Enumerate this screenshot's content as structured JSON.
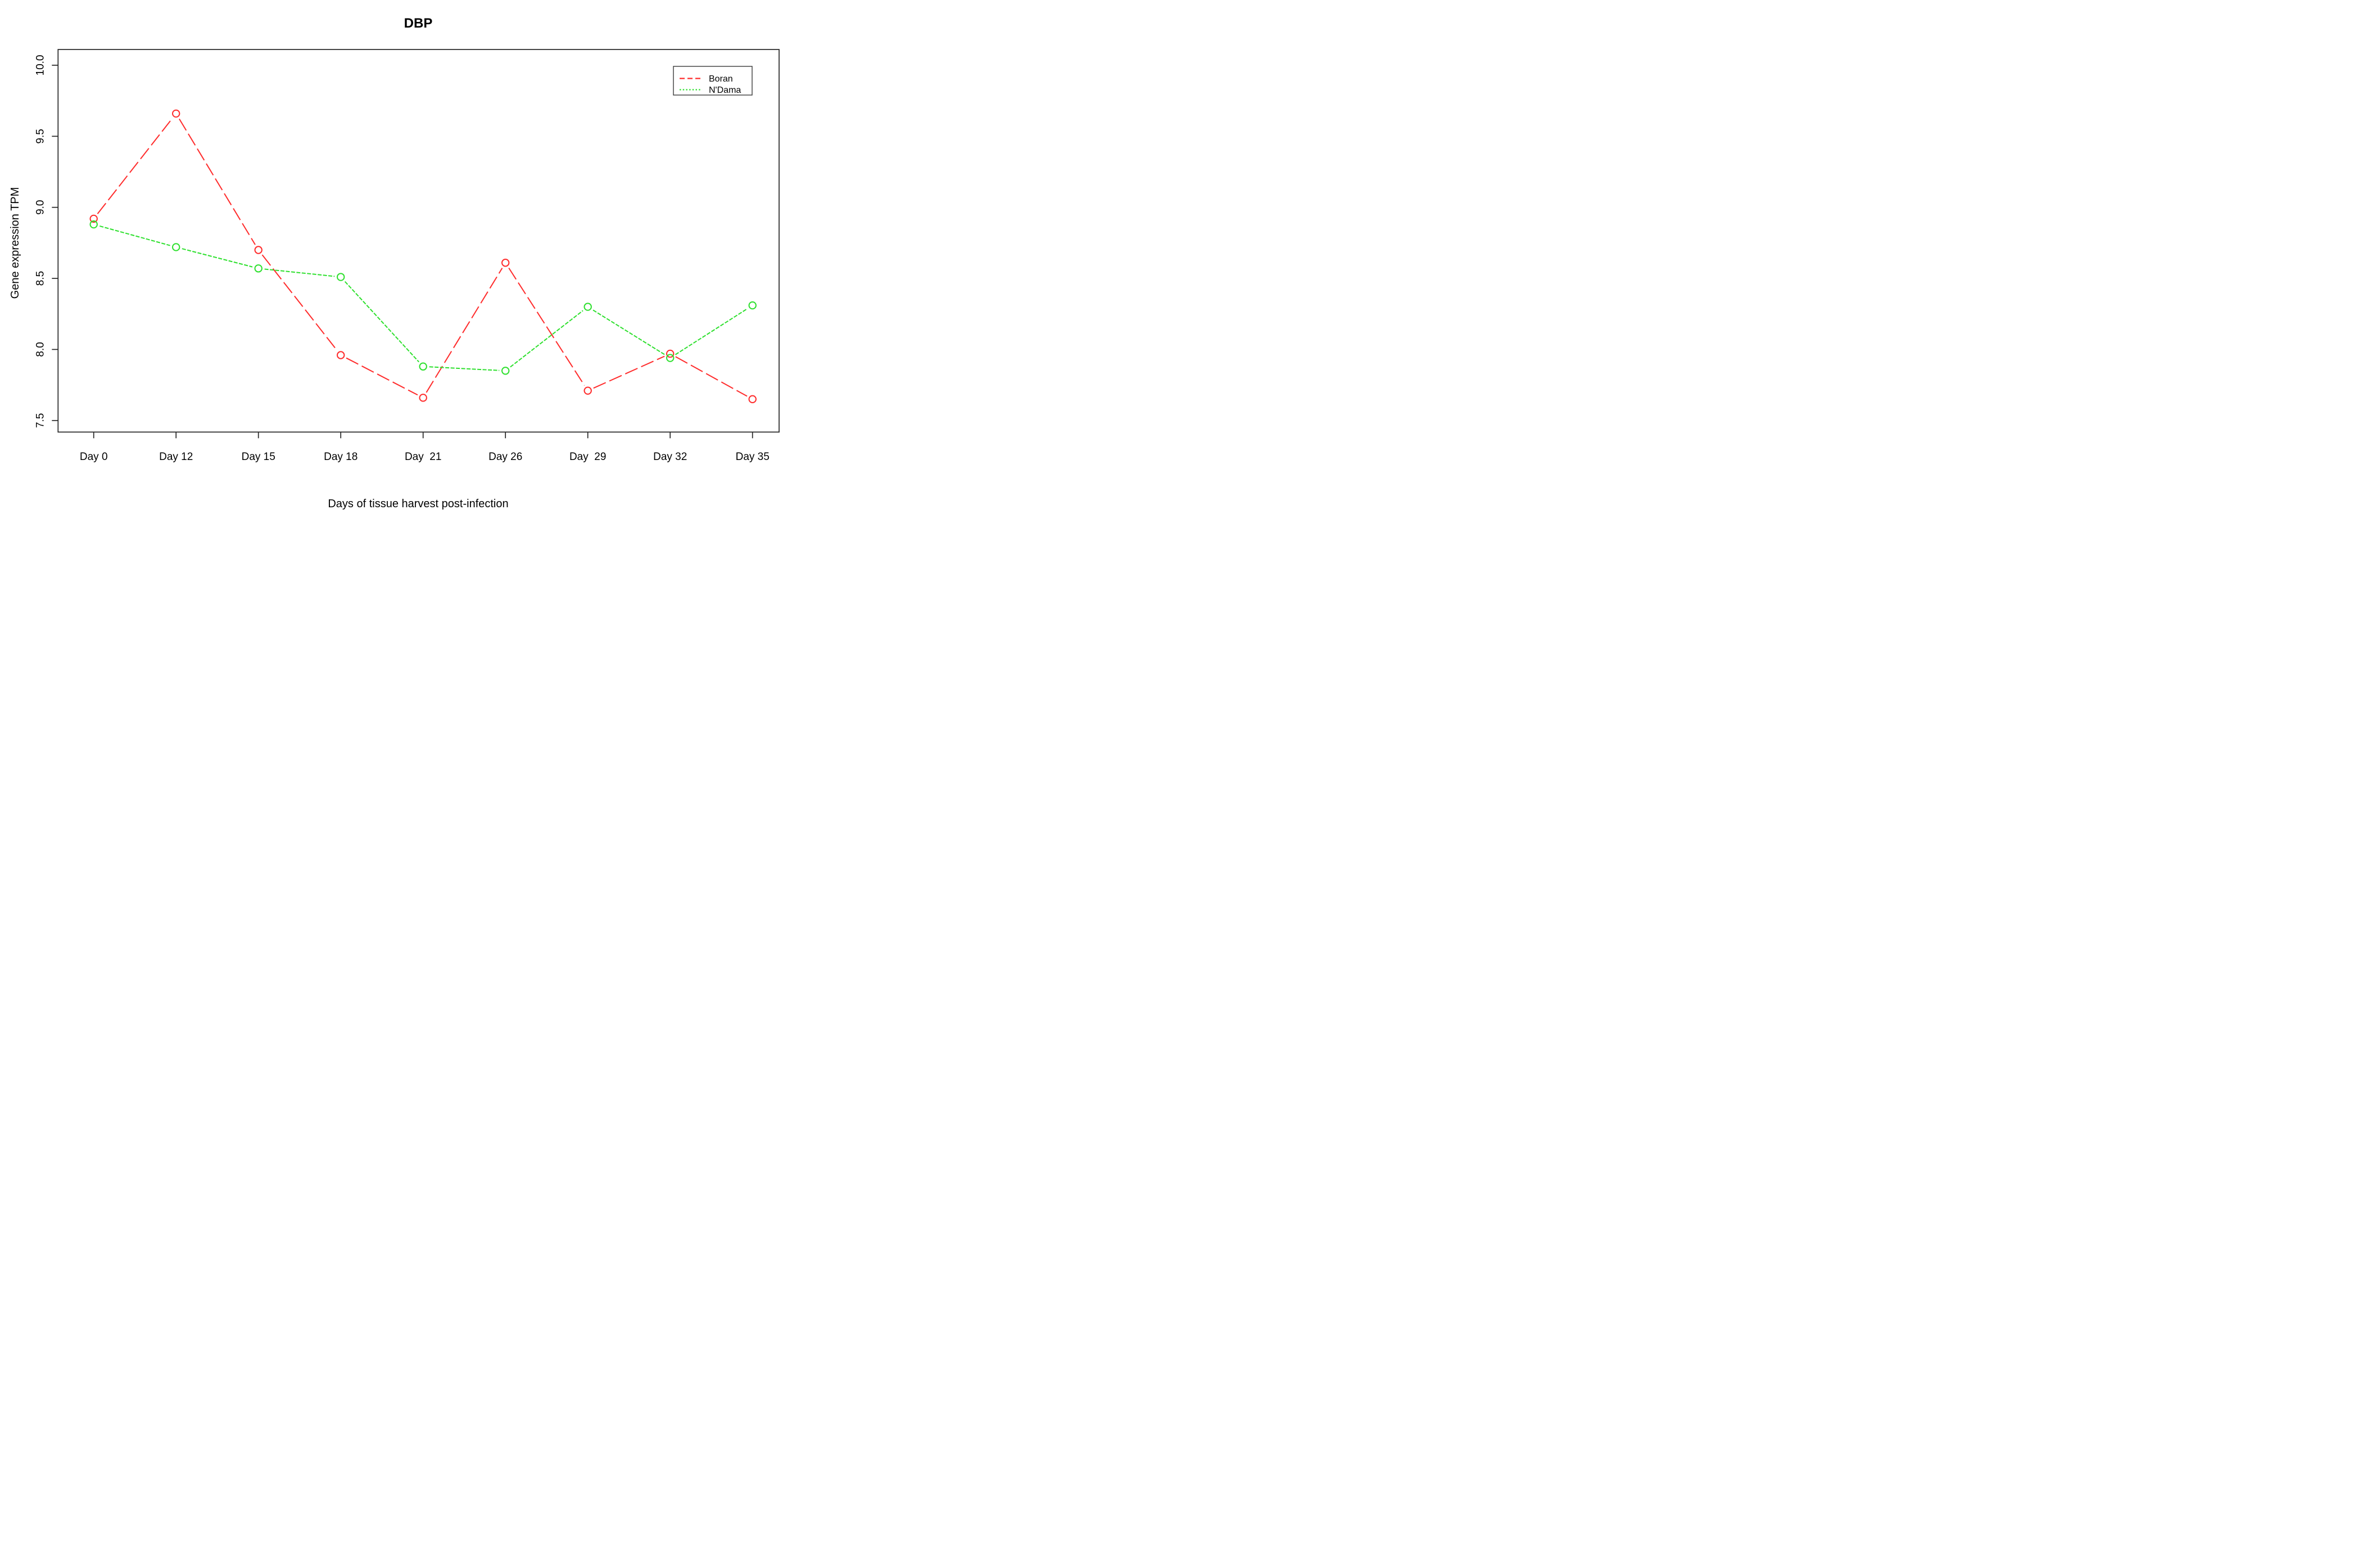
{
  "chart_data": {
    "type": "line",
    "title": "DBP",
    "xlabel": "Days of tissue harvest post-infection",
    "ylabel": "Gene expression TPM",
    "categories": [
      "Day 0",
      "Day 12",
      "Day 15",
      "Day 18",
      "Day  21",
      "Day 26",
      "Day  29",
      "Day 32",
      "Day 35"
    ],
    "y_ticks": [
      7.5,
      8.0,
      8.5,
      9.0,
      9.5,
      10.0
    ],
    "ylim": [
      7.42,
      10.11
    ],
    "grid": false,
    "legend_position": "top-right",
    "marker": "open-circle",
    "axis_color": "#262626",
    "series": [
      {
        "name": "Boran",
        "color": "#ff2c2c",
        "linestyle": "dashed",
        "values": [
          8.92,
          9.66,
          8.7,
          7.96,
          7.66,
          8.61,
          7.71,
          7.97,
          7.65
        ]
      },
      {
        "name": "N'Dama",
        "color": "#2ee02e",
        "linestyle": "dotted",
        "values": [
          8.88,
          8.72,
          8.57,
          8.51,
          7.88,
          7.85,
          8.3,
          7.94,
          8.31
        ]
      }
    ]
  }
}
